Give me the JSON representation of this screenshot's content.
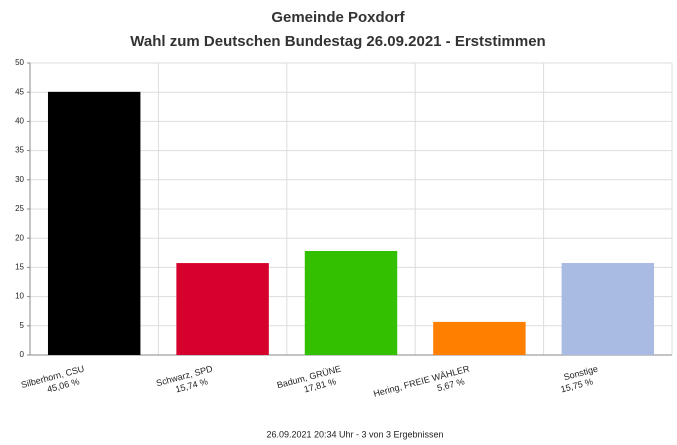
{
  "chart_data": {
    "type": "bar",
    "title": "Gemeinde Poxdorf",
    "subtitle": "Wahl zum Deutschen Bundestag 26.09.2021  - Erststimmen",
    "categories": [
      "Silberhorn, CSU",
      "Schwarz, SPD",
      "Badum, GRÜNE",
      "Hering, FREIE WÄHLER",
      "Sonstige"
    ],
    "values": [
      45.06,
      15.74,
      17.81,
      5.67,
      15.75
    ],
    "value_labels": [
      "45,06 %",
      "15,74 %",
      "17,81 %",
      "5,67 %",
      "15,75 %"
    ],
    "colors": [
      "#000000",
      "#d5002b",
      "#33c000",
      "#ff7f00",
      "#a9bbe3"
    ],
    "ylim": [
      0,
      50
    ],
    "yticks": [
      0,
      5,
      10,
      15,
      20,
      25,
      30,
      35,
      40,
      45,
      50
    ],
    "grid": true,
    "footer": "26.09.2021 20:34 Uhr - 3 von 3 Ergebnissen"
  }
}
